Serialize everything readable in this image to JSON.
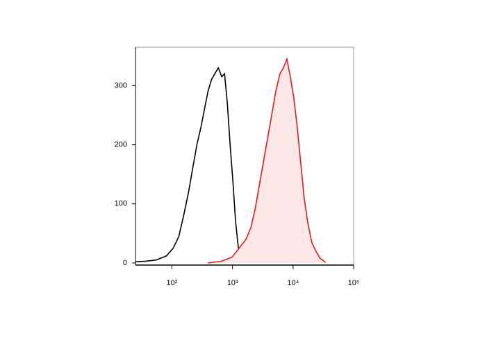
{
  "chart_data": {
    "type": "line",
    "xscale": "log",
    "xlim": [
      25,
      100000
    ],
    "ylim": [
      0,
      365
    ],
    "xticks": [
      {
        "value": 100,
        "label": "10²"
      },
      {
        "value": 1000,
        "label": "10³"
      },
      {
        "value": 10000,
        "label": "10⁴"
      },
      {
        "value": 100000,
        "label": "10⁵"
      }
    ],
    "yticks": [
      0,
      100,
      200,
      300
    ],
    "series": [
      {
        "color": "#000000",
        "x": [
          25,
          37,
          55,
          81,
          105,
          130,
          156,
          188,
          220,
          258,
          302,
          344,
          393,
          448,
          511,
          583,
          665,
          739,
          821,
          912,
          1013,
          1125,
          1250,
          1465,
          1905,
          2825
        ],
        "values": [
          2,
          3,
          5,
          12,
          25,
          45,
          80,
          120,
          160,
          200,
          230,
          260,
          290,
          310,
          320,
          330,
          315,
          320,
          270,
          200,
          140,
          70,
          25,
          8,
          3,
          1
        ]
      },
      {
        "color": "#e31a1c",
        "fill": "#fde8e8",
        "x": [
          393,
          665,
          986,
          1284,
          1670,
          2010,
          2351,
          2754,
          3226,
          3778,
          4425,
          5180,
          6066,
          6918,
          7890,
          8998,
          10262,
          11700,
          13360,
          15230,
          17370,
          20350,
          23840,
          27920,
          34450
        ],
        "values": [
          0,
          3,
          10,
          25,
          40,
          60,
          90,
          130,
          170,
          210,
          250,
          290,
          320,
          330,
          345,
          315,
          280,
          230,
          170,
          110,
          70,
          35,
          20,
          8,
          1
        ]
      }
    ]
  }
}
